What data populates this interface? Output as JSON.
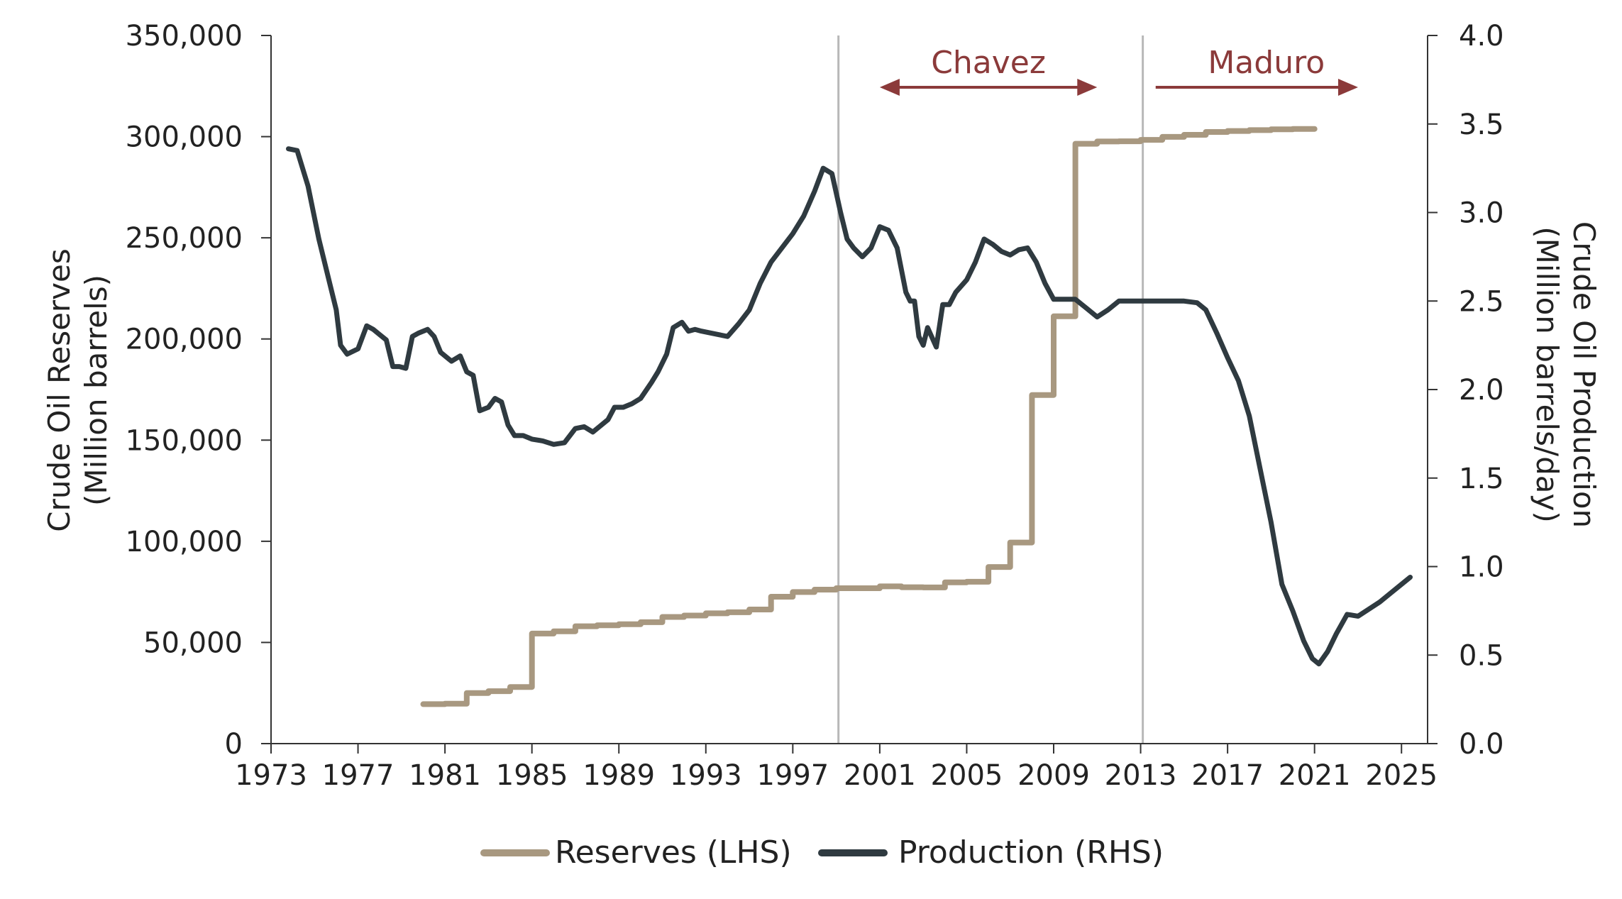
{
  "chart_data": {
    "type": "line",
    "title": "",
    "xlabel": "",
    "x_ticks": [
      "1973",
      "1977",
      "1981",
      "1985",
      "1989",
      "1993",
      "1997",
      "2001",
      "2005",
      "2009",
      "2013",
      "2017",
      "2021",
      "2025"
    ],
    "xlim": [
      1973,
      2026.2
    ],
    "y_left": {
      "label_line1": "Crude Oil Reserves",
      "label_line2": "(Million barrels)",
      "ylim": [
        0,
        350000
      ],
      "ticks": [
        "0",
        "50,000",
        "100,000",
        "150,000",
        "200,000",
        "250,000",
        "300,000",
        "350,000"
      ]
    },
    "y_right": {
      "label_line1": "Crude Oil Production",
      "label_line2": "(Million barrels/day)",
      "ylim": [
        0,
        4
      ],
      "ticks": [
        "0.0",
        "0.5",
        "1.0",
        "1.5",
        "2.0",
        "2.5",
        "3.0",
        "3.5",
        "4.0"
      ]
    },
    "vertical_lines": [
      1999.1,
      2013.1
    ],
    "annotations": [
      {
        "label": "Chavez",
        "from": 2001.0,
        "to": 2011.0
      },
      {
        "label": "Maduro",
        "from": 2013.3,
        "to": 2023.0
      }
    ],
    "legend_position": "bottom-center",
    "colors": {
      "reserves": "#a89880",
      "production": "#2f3a40",
      "era": "#8b3a3a",
      "vline": "#b8b8b8",
      "axis": "#333333"
    },
    "series": [
      {
        "name": "Reserves (LHS)",
        "axis": "left",
        "step": true,
        "points": [
          [
            1980.0,
            19500
          ],
          [
            1981.0,
            19700
          ],
          [
            1982.0,
            25000
          ],
          [
            1983.0,
            25900
          ],
          [
            1984.0,
            28000
          ],
          [
            1985.0,
            54400
          ],
          [
            1986.0,
            55500
          ],
          [
            1987.0,
            58000
          ],
          [
            1988.0,
            58500
          ],
          [
            1989.0,
            59000
          ],
          [
            1990.0,
            60000
          ],
          [
            1991.0,
            62600
          ],
          [
            1992.0,
            63300
          ],
          [
            1993.0,
            64400
          ],
          [
            1994.0,
            64900
          ],
          [
            1995.0,
            66300
          ],
          [
            1996.0,
            72600
          ],
          [
            1997.0,
            74900
          ],
          [
            1998.0,
            76100
          ],
          [
            1999.0,
            76800
          ],
          [
            2000.0,
            76800
          ],
          [
            2001.0,
            77700
          ],
          [
            2002.0,
            77300
          ],
          [
            2003.0,
            77200
          ],
          [
            2004.0,
            79700
          ],
          [
            2005.0,
            80000
          ],
          [
            2006.0,
            87300
          ],
          [
            2007.0,
            99400
          ],
          [
            2008.0,
            172300
          ],
          [
            2009.0,
            211200
          ],
          [
            2010.0,
            296500
          ],
          [
            2011.0,
            297600
          ],
          [
            2012.0,
            297700
          ],
          [
            2013.0,
            298400
          ],
          [
            2014.0,
            299900
          ],
          [
            2015.0,
            300900
          ],
          [
            2016.0,
            302300
          ],
          [
            2017.0,
            302800
          ],
          [
            2018.0,
            303200
          ],
          [
            2019.0,
            303600
          ],
          [
            2020.0,
            303800
          ],
          [
            2021.0,
            303800
          ]
        ]
      },
      {
        "name": "Production (RHS)",
        "axis": "right",
        "step": false,
        "points": [
          [
            1973.8,
            3.36
          ],
          [
            1974.2,
            3.35
          ],
          [
            1974.7,
            3.15
          ],
          [
            1975.2,
            2.85
          ],
          [
            1975.7,
            2.6
          ],
          [
            1976.0,
            2.45
          ],
          [
            1976.2,
            2.25
          ],
          [
            1976.5,
            2.2
          ],
          [
            1977.0,
            2.23
          ],
          [
            1977.4,
            2.36
          ],
          [
            1977.7,
            2.34
          ],
          [
            1978.0,
            2.31
          ],
          [
            1978.3,
            2.28
          ],
          [
            1978.6,
            2.13
          ],
          [
            1978.9,
            2.13
          ],
          [
            1979.2,
            2.12
          ],
          [
            1979.5,
            2.3
          ],
          [
            1979.8,
            2.32
          ],
          [
            1980.2,
            2.34
          ],
          [
            1980.5,
            2.3
          ],
          [
            1980.8,
            2.21
          ],
          [
            1981.3,
            2.16
          ],
          [
            1981.7,
            2.19
          ],
          [
            1982.0,
            2.1
          ],
          [
            1982.3,
            2.08
          ],
          [
            1982.6,
            1.88
          ],
          [
            1983.0,
            1.9
          ],
          [
            1983.3,
            1.95
          ],
          [
            1983.6,
            1.93
          ],
          [
            1983.9,
            1.8
          ],
          [
            1984.2,
            1.74
          ],
          [
            1984.6,
            1.74
          ],
          [
            1985.0,
            1.72
          ],
          [
            1985.5,
            1.71
          ],
          [
            1986.0,
            1.69
          ],
          [
            1986.5,
            1.7
          ],
          [
            1987.0,
            1.78
          ],
          [
            1987.4,
            1.79
          ],
          [
            1987.8,
            1.76
          ],
          [
            1988.2,
            1.8
          ],
          [
            1988.5,
            1.83
          ],
          [
            1988.8,
            1.9
          ],
          [
            1989.2,
            1.9
          ],
          [
            1989.6,
            1.92
          ],
          [
            1990.0,
            1.95
          ],
          [
            1990.5,
            2.04
          ],
          [
            1990.8,
            2.1
          ],
          [
            1991.2,
            2.2
          ],
          [
            1991.5,
            2.35
          ],
          [
            1991.9,
            2.38
          ],
          [
            1992.2,
            2.33
          ],
          [
            1992.5,
            2.34
          ],
          [
            1992.8,
            2.33
          ],
          [
            1993.2,
            2.32
          ],
          [
            1993.6,
            2.31
          ],
          [
            1994.0,
            2.3
          ],
          [
            1994.5,
            2.37
          ],
          [
            1995.0,
            2.45
          ],
          [
            1995.5,
            2.6
          ],
          [
            1996.0,
            2.72
          ],
          [
            1996.5,
            2.8
          ],
          [
            1997.0,
            2.88
          ],
          [
            1997.5,
            2.98
          ],
          [
            1998.0,
            3.12
          ],
          [
            1998.4,
            3.25
          ],
          [
            1998.8,
            3.22
          ],
          [
            1999.2,
            3.0
          ],
          [
            1999.5,
            2.85
          ],
          [
            1999.8,
            2.8
          ],
          [
            2000.2,
            2.75
          ],
          [
            2000.6,
            2.8
          ],
          [
            2001.0,
            2.92
          ],
          [
            2001.4,
            2.9
          ],
          [
            2001.8,
            2.8
          ],
          [
            2002.2,
            2.55
          ],
          [
            2002.4,
            2.5
          ],
          [
            2002.6,
            2.5
          ],
          [
            2002.8,
            2.3
          ],
          [
            2003.0,
            2.25
          ],
          [
            2003.2,
            2.35
          ],
          [
            2003.6,
            2.24
          ],
          [
            2003.9,
            2.48
          ],
          [
            2004.2,
            2.48
          ],
          [
            2004.5,
            2.55
          ],
          [
            2005.0,
            2.62
          ],
          [
            2005.4,
            2.72
          ],
          [
            2005.8,
            2.85
          ],
          [
            2006.2,
            2.82
          ],
          [
            2006.6,
            2.78
          ],
          [
            2007.0,
            2.76
          ],
          [
            2007.4,
            2.79
          ],
          [
            2007.8,
            2.8
          ],
          [
            2008.2,
            2.72
          ],
          [
            2008.6,
            2.6
          ],
          [
            2009.0,
            2.51
          ],
          [
            2009.5,
            2.51
          ],
          [
            2010.0,
            2.51
          ],
          [
            2010.5,
            2.46
          ],
          [
            2011.0,
            2.41
          ],
          [
            2011.5,
            2.45
          ],
          [
            2012.0,
            2.5
          ],
          [
            2013.0,
            2.5
          ],
          [
            2014.0,
            2.5
          ],
          [
            2015.0,
            2.5
          ],
          [
            2015.6,
            2.49
          ],
          [
            2016.0,
            2.45
          ],
          [
            2016.5,
            2.32
          ],
          [
            2017.0,
            2.18
          ],
          [
            2017.5,
            2.05
          ],
          [
            2018.0,
            1.85
          ],
          [
            2018.5,
            1.55
          ],
          [
            2019.0,
            1.25
          ],
          [
            2019.5,
            0.9
          ],
          [
            2020.0,
            0.75
          ],
          [
            2020.5,
            0.58
          ],
          [
            2020.9,
            0.48
          ],
          [
            2021.2,
            0.45
          ],
          [
            2021.6,
            0.52
          ],
          [
            2022.0,
            0.62
          ],
          [
            2022.5,
            0.73
          ],
          [
            2023.0,
            0.72
          ],
          [
            2023.5,
            0.76
          ],
          [
            2024.0,
            0.8
          ],
          [
            2024.5,
            0.85
          ],
          [
            2025.0,
            0.9
          ],
          [
            2025.4,
            0.94
          ]
        ]
      }
    ]
  }
}
